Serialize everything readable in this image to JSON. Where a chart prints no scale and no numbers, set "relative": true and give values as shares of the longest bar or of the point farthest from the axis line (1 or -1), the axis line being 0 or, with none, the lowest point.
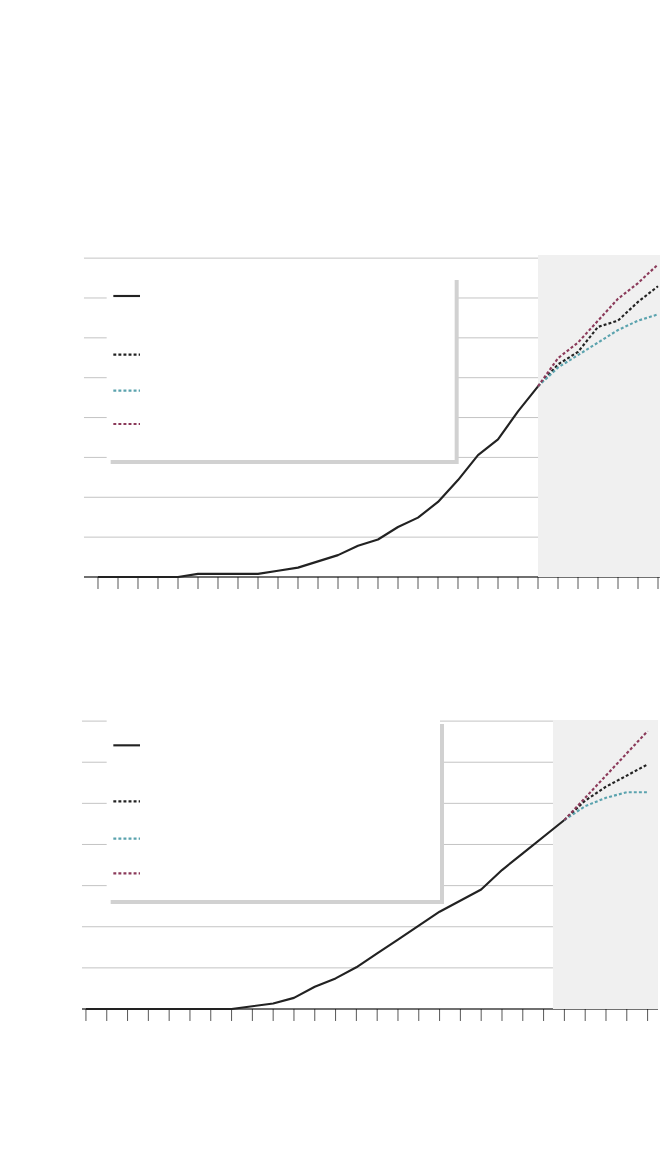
{
  "chart_data": [
    {
      "type": "line",
      "relative": true,
      "grid": "y",
      "categories": [
        null,
        null,
        null,
        null,
        null,
        null,
        null,
        null,
        null,
        null,
        null,
        null,
        null,
        null,
        null,
        null,
        null,
        null,
        null,
        null,
        null,
        null,
        null,
        null,
        null,
        null,
        null,
        null,
        null
      ],
      "series": [
        {
          "color": "#222222",
          "line_style": "solid",
          "values": [
            0,
            0,
            0,
            0,
            0,
            0.01,
            0.01,
            0.01,
            0.01,
            0.02,
            0.03,
            0.05,
            0.07,
            0.1,
            0.12,
            0.16,
            0.19,
            0.24,
            0.31,
            0.39,
            0.44,
            0.53,
            0.61,
            null,
            null,
            null,
            null,
            null,
            null
          ]
        },
        {
          "color": "#222222",
          "line_style": "dashed",
          "values": [
            null,
            null,
            null,
            null,
            null,
            null,
            null,
            null,
            null,
            null,
            null,
            null,
            null,
            null,
            null,
            null,
            null,
            null,
            null,
            null,
            null,
            null,
            0.61,
            0.68,
            0.72,
            0.8,
            0.82,
            0.88,
            0.93
          ]
        },
        {
          "color": "#5ba3ae",
          "line_style": "dashed",
          "values": [
            null,
            null,
            null,
            null,
            null,
            null,
            null,
            null,
            null,
            null,
            null,
            null,
            null,
            null,
            null,
            null,
            null,
            null,
            null,
            null,
            null,
            null,
            0.61,
            0.67,
            0.71,
            0.75,
            0.79,
            0.82,
            0.84
          ]
        },
        {
          "color": "#8b3a5a",
          "line_style": "dashed",
          "values": [
            null,
            null,
            null,
            null,
            null,
            null,
            null,
            null,
            null,
            null,
            null,
            null,
            null,
            null,
            null,
            null,
            null,
            null,
            null,
            null,
            null,
            null,
            0.61,
            0.7,
            0.75,
            0.82,
            0.89,
            0.94,
            1.0
          ]
        }
      ]
    },
    {
      "type": "line",
      "relative": true,
      "grid": "y",
      "categories": [
        null,
        null,
        null,
        null,
        null,
        null,
        null,
        null,
        null,
        null,
        null,
        null,
        null,
        null,
        null,
        null,
        null,
        null,
        null,
        null,
        null,
        null,
        null,
        null,
        null,
        null,
        null,
        null
      ],
      "series": [
        {
          "color": "#222222",
          "line_style": "solid",
          "values": [
            0,
            0,
            0,
            0,
            0,
            0,
            0,
            0,
            0.01,
            0.02,
            0.04,
            0.08,
            0.11,
            0.15,
            0.2,
            0.25,
            0.3,
            0.35,
            0.39,
            0.43,
            0.5,
            0.56,
            0.62,
            0.68,
            null,
            null,
            null,
            null
          ]
        },
        {
          "color": "#222222",
          "line_style": "dashed",
          "values": [
            null,
            null,
            null,
            null,
            null,
            null,
            null,
            null,
            null,
            null,
            null,
            null,
            null,
            null,
            null,
            null,
            null,
            null,
            null,
            null,
            null,
            null,
            null,
            0.68,
            0.75,
            0.8,
            0.84,
            0.88
          ]
        },
        {
          "color": "#5ba3ae",
          "line_style": "dashed",
          "values": [
            null,
            null,
            null,
            null,
            null,
            null,
            null,
            null,
            null,
            null,
            null,
            null,
            null,
            null,
            null,
            null,
            null,
            null,
            null,
            null,
            null,
            null,
            null,
            0.68,
            0.73,
            0.76,
            0.78,
            0.78
          ]
        },
        {
          "color": "#8b3a5a",
          "line_style": "dashed",
          "values": [
            null,
            null,
            null,
            null,
            null,
            null,
            null,
            null,
            null,
            null,
            null,
            null,
            null,
            null,
            null,
            null,
            null,
            null,
            null,
            null,
            null,
            null,
            null,
            0.68,
            0.76,
            0.84,
            0.92,
            1.0
          ]
        }
      ]
    }
  ]
}
